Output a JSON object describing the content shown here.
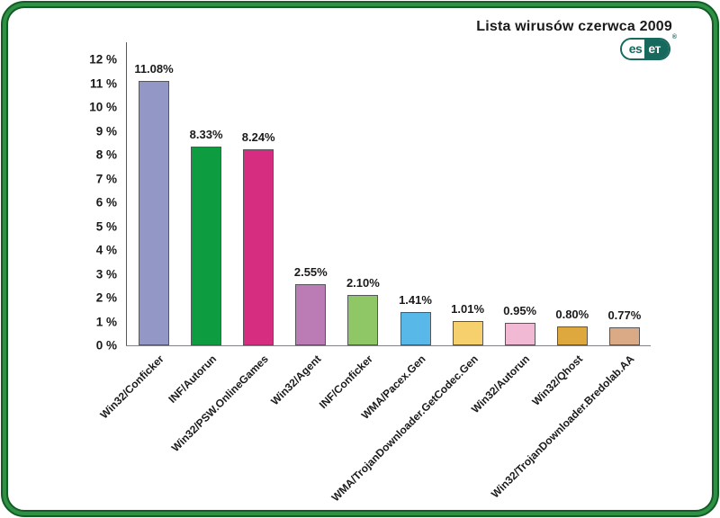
{
  "header": {
    "title": "Lista wirusów czerwca 2009",
    "logo": {
      "left": "es",
      "right": "eт",
      "reg": "®"
    }
  },
  "colors": {
    "frame_green_dark": "#135c26",
    "frame_green_mid": "#2e9044",
    "logo_teal": "#16695c",
    "axis_gray": "#58595b",
    "text": "#1a1a1a"
  },
  "chart_data": {
    "type": "bar",
    "title": "Lista wirusów czerwca 2009",
    "categories": [
      "Win32/Conficker",
      "INF/Autorun",
      "Win32/PSW.OnlineGames",
      "Win32/Agent",
      "INF/Conficker",
      "WMA/Pacex.Gen",
      "WMA/TrojanDownloader.GetCodec.Gen",
      "Win32/Autorun",
      "Win32/Qhost",
      "Win32/TrojanDownloader.Bredolab.AA"
    ],
    "values": [
      11.08,
      8.33,
      8.24,
      2.55,
      2.1,
      1.41,
      1.01,
      0.95,
      0.8,
      0.77
    ],
    "value_labels": [
      "11.08%",
      "8.33%",
      "8.24%",
      "2.55%",
      "2.10%",
      "1.41%",
      "1.01%",
      "0.95%",
      "0.80%",
      "0.77%"
    ],
    "bar_colors": [
      "#9297c6",
      "#0d9c40",
      "#d62d80",
      "#bb7cb5",
      "#8fc767",
      "#58b9e8",
      "#f6d06d",
      "#f2b9d5",
      "#dfa83f",
      "#d9aa85"
    ],
    "y_ticks": [
      "0 %",
      "1 %",
      "2 %",
      "3 %",
      "4 %",
      "5 %",
      "6 %",
      "7 %",
      "8 %",
      "9 %",
      "10 %",
      "11 %",
      "12 %"
    ],
    "ylim": [
      0,
      12
    ],
    "xlabel": "",
    "ylabel": "",
    "grid": false,
    "legend": null,
    "x_label_rotation_deg": 45
  }
}
